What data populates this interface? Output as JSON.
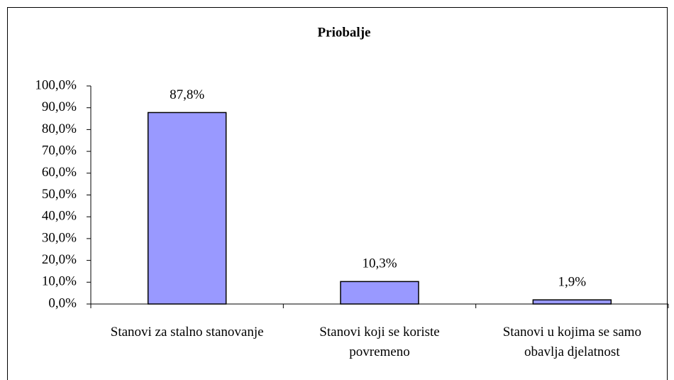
{
  "chart_data": {
    "type": "bar",
    "title": "Priobalje",
    "categories": [
      "Stanovi za stalno stanovanje",
      "Stanovi koji se koriste povremeno",
      "Stanovi u kojima se samo obavlja djelatnost"
    ],
    "values": [
      87.8,
      10.3,
      1.9
    ],
    "value_labels": [
      "87,8%",
      "10,3%",
      "1,9%"
    ],
    "color": "#9999ff",
    "ylim": [
      0,
      100
    ],
    "yticks": [
      {
        "value": 0,
        "label": "0,0%"
      },
      {
        "value": 10,
        "label": "10,0%"
      },
      {
        "value": 20,
        "label": "20,0%"
      },
      {
        "value": 30,
        "label": "30,0%"
      },
      {
        "value": 40,
        "label": "40,0%"
      },
      {
        "value": 50,
        "label": "50,0%"
      },
      {
        "value": 60,
        "label": "60,0%"
      },
      {
        "value": 70,
        "label": "70,0%"
      },
      {
        "value": 80,
        "label": "80,0%"
      },
      {
        "value": 90,
        "label": "90,0%"
      },
      {
        "value": 100,
        "label": "100,0%"
      }
    ]
  }
}
